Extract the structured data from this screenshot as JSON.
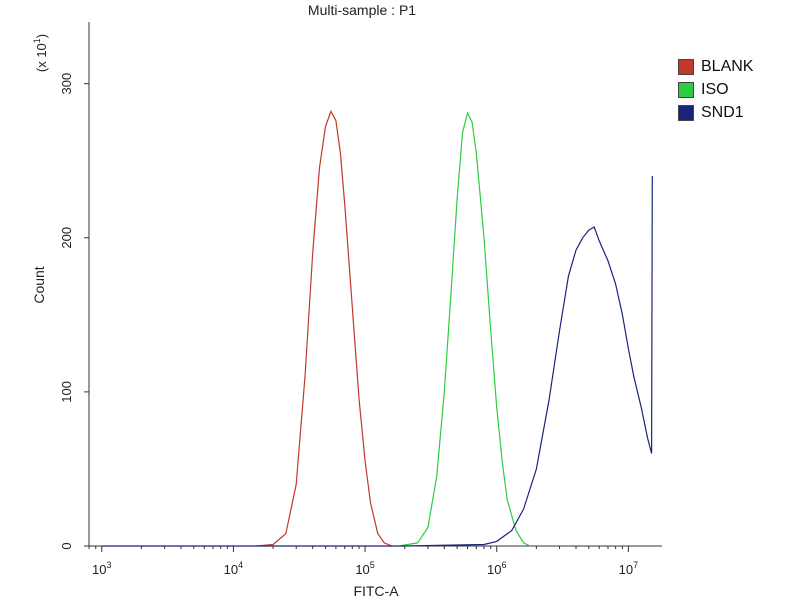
{
  "chart_data": {
    "type": "line",
    "title": "Multi-sample : P1",
    "xlabel": "FITC-A",
    "ylabel": "Count",
    "y_multiplier_label": "(x 10",
    "y_multiplier_exp": "1",
    "x_scale": "log",
    "xlim": [
      800,
      18000000
    ],
    "ylim": [
      0,
      340
    ],
    "x_ticks": [
      {
        "base": "10",
        "exp": "3",
        "value": 1000
      },
      {
        "base": "10",
        "exp": "4",
        "value": 10000
      },
      {
        "base": "10",
        "exp": "5",
        "value": 100000
      },
      {
        "base": "10",
        "exp": "6",
        "value": 1000000
      },
      {
        "base": "10",
        "exp": "7",
        "value": 10000000
      }
    ],
    "y_ticks": [
      {
        "label": "0",
        "value": 0
      },
      {
        "label": "100",
        "value": 100
      },
      {
        "label": "200",
        "value": 200
      },
      {
        "label": "300",
        "value": 300
      }
    ],
    "grid": false,
    "legend_position": "top-right",
    "series": [
      {
        "name": "BLANK",
        "color": "#c0392b",
        "points": [
          [
            15000,
            0
          ],
          [
            20000,
            1
          ],
          [
            25000,
            8
          ],
          [
            30000,
            40
          ],
          [
            35000,
            110
          ],
          [
            40000,
            190
          ],
          [
            45000,
            245
          ],
          [
            50000,
            272
          ],
          [
            55000,
            282
          ],
          [
            60000,
            276
          ],
          [
            65000,
            255
          ],
          [
            70000,
            222
          ],
          [
            80000,
            155
          ],
          [
            90000,
            95
          ],
          [
            100000,
            55
          ],
          [
            110000,
            28
          ],
          [
            125000,
            8
          ],
          [
            140000,
            2
          ],
          [
            160000,
            0
          ]
        ]
      },
      {
        "name": "ISO",
        "color": "#2ecc40",
        "points": [
          [
            180000,
            0
          ],
          [
            250000,
            2
          ],
          [
            300000,
            12
          ],
          [
            350000,
            45
          ],
          [
            400000,
            100
          ],
          [
            450000,
            165
          ],
          [
            500000,
            225
          ],
          [
            550000,
            268
          ],
          [
            600000,
            281
          ],
          [
            650000,
            275
          ],
          [
            700000,
            255
          ],
          [
            800000,
            200
          ],
          [
            900000,
            140
          ],
          [
            1000000,
            90
          ],
          [
            1100000,
            55
          ],
          [
            1200000,
            30
          ],
          [
            1400000,
            10
          ],
          [
            1600000,
            2
          ],
          [
            1800000,
            0
          ]
        ]
      },
      {
        "name": "SND1",
        "color": "#1a237e",
        "points": [
          [
            1000,
            0
          ],
          [
            200000,
            0
          ],
          [
            800000,
            1
          ],
          [
            1000000,
            3
          ],
          [
            1300000,
            10
          ],
          [
            1600000,
            24
          ],
          [
            2000000,
            50
          ],
          [
            2500000,
            95
          ],
          [
            3000000,
            140
          ],
          [
            3500000,
            175
          ],
          [
            4000000,
            192
          ],
          [
            4500000,
            200
          ],
          [
            5000000,
            205
          ],
          [
            5500000,
            207
          ],
          [
            6000000,
            198
          ],
          [
            7000000,
            185
          ],
          [
            8000000,
            170
          ],
          [
            9000000,
            150
          ],
          [
            10000000,
            128
          ],
          [
            11000000,
            110
          ],
          [
            12500000,
            90
          ],
          [
            14000000,
            70
          ],
          [
            15000000,
            60
          ],
          [
            15200000,
            240
          ]
        ]
      }
    ]
  }
}
